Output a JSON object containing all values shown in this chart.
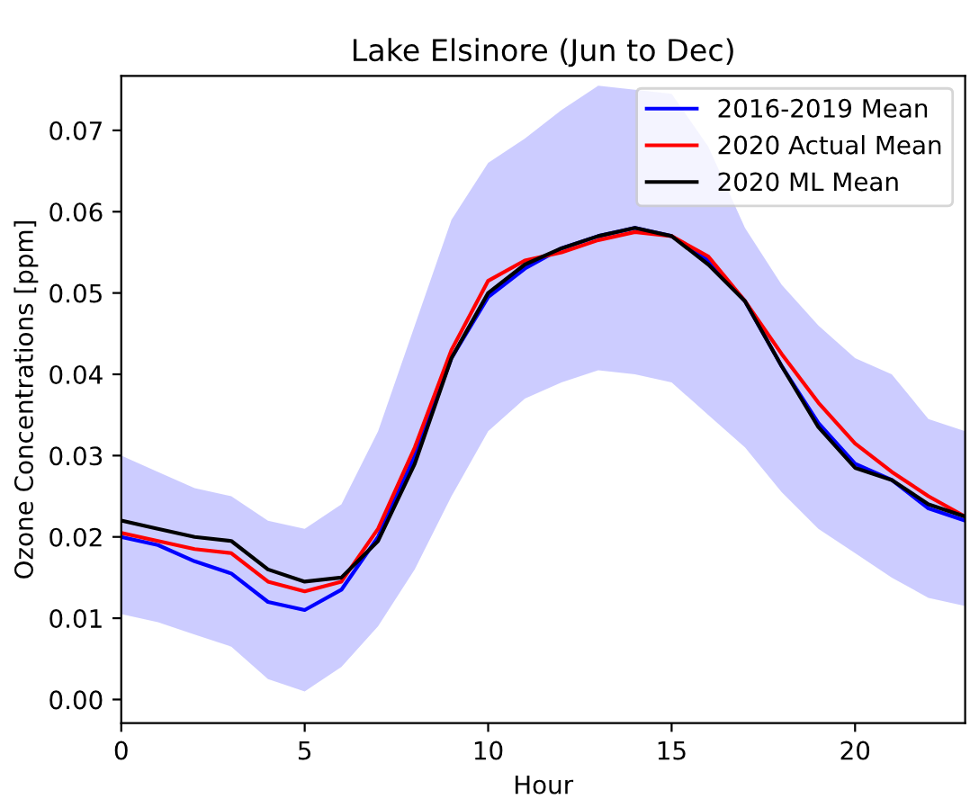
{
  "chart_data": {
    "type": "line",
    "title": "Lake Elsinore (Jun to Dec)",
    "xlabel": "Hour",
    "ylabel": "Ozone Concentrations [ppm]",
    "x": [
      0,
      1,
      2,
      3,
      4,
      5,
      6,
      7,
      8,
      9,
      10,
      11,
      12,
      13,
      14,
      15,
      16,
      17,
      18,
      19,
      20,
      21,
      22,
      23
    ],
    "series": [
      {
        "name": "2016-2019 Mean",
        "color": "#0000ff",
        "values": [
          0.02,
          0.019,
          0.017,
          0.0155,
          0.012,
          0.011,
          0.0135,
          0.02,
          0.03,
          0.042,
          0.0495,
          0.053,
          0.0555,
          0.057,
          0.058,
          0.057,
          0.054,
          0.049,
          0.041,
          0.034,
          0.029,
          0.027,
          0.0235,
          0.022
        ],
        "lower": [
          0.0105,
          0.0095,
          0.008,
          0.0065,
          0.0025,
          0.001,
          0.004,
          0.009,
          0.016,
          0.025,
          0.033,
          0.037,
          0.039,
          0.0405,
          0.04,
          0.039,
          0.035,
          0.031,
          0.0255,
          0.021,
          0.018,
          0.015,
          0.0125,
          0.0115
        ],
        "upper": [
          0.03,
          0.028,
          0.026,
          0.025,
          0.022,
          0.021,
          0.024,
          0.033,
          0.046,
          0.059,
          0.066,
          0.069,
          0.0725,
          0.0755,
          0.075,
          0.0745,
          0.068,
          0.058,
          0.051,
          0.046,
          0.042,
          0.04,
          0.0345,
          0.033
        ]
      },
      {
        "name": "2020 Actual Mean",
        "color": "#ff0000",
        "values": [
          0.0205,
          0.0195,
          0.0185,
          0.018,
          0.0145,
          0.0133,
          0.0145,
          0.021,
          0.031,
          0.043,
          0.0515,
          0.054,
          0.055,
          0.0565,
          0.0575,
          0.057,
          0.0545,
          0.049,
          0.0425,
          0.0365,
          0.0315,
          0.028,
          0.025,
          0.0225
        ]
      },
      {
        "name": "2020 ML Mean",
        "color": "#000000",
        "values": [
          0.022,
          0.021,
          0.02,
          0.0195,
          0.016,
          0.0145,
          0.015,
          0.0195,
          0.029,
          0.042,
          0.05,
          0.0535,
          0.0555,
          0.057,
          0.058,
          0.057,
          0.0535,
          0.049,
          0.041,
          0.0335,
          0.0285,
          0.027,
          0.024,
          0.0225
        ]
      }
    ],
    "xlim": [
      0,
      23
    ],
    "xticks": [
      0,
      5,
      10,
      15,
      20
    ],
    "ylim": [
      -0.0029,
      0.0767
    ],
    "yticks": [
      {
        "value": 0,
        "label": "0.00"
      },
      {
        "value": 0.01,
        "label": "0.01"
      },
      {
        "value": 0.02,
        "label": "0.02"
      },
      {
        "value": 0.03,
        "label": "0.03"
      },
      {
        "value": 0.04,
        "label": "0.04"
      },
      {
        "value": 0.05,
        "label": "0.05"
      },
      {
        "value": 0.06,
        "label": "0.06"
      },
      {
        "value": 0.07,
        "label": "0.07"
      }
    ],
    "legend": "top right",
    "grid": false
  }
}
